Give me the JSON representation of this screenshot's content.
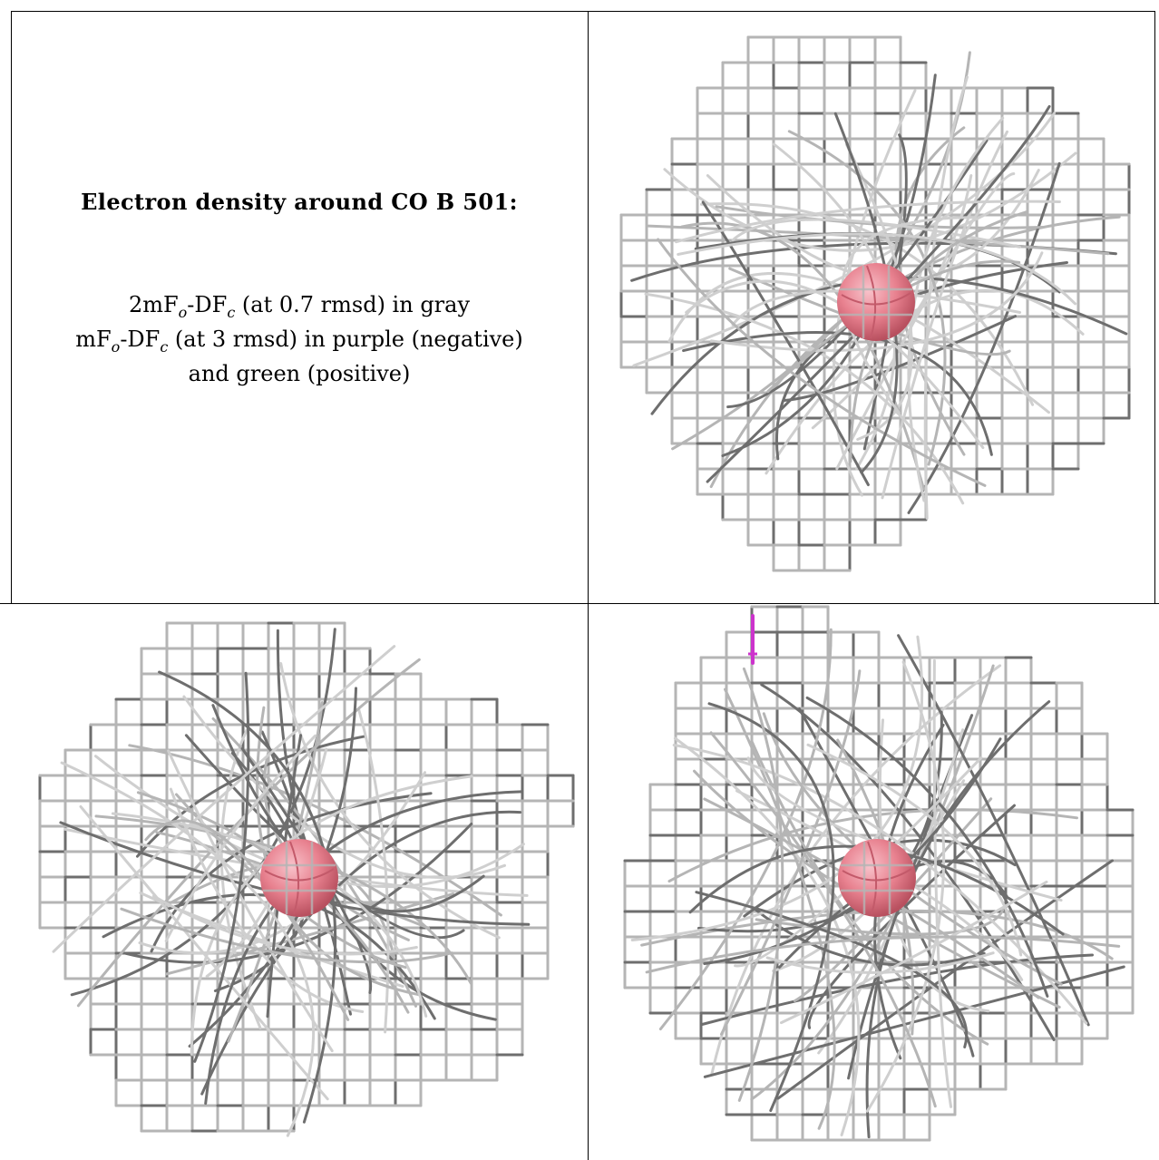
{
  "caption": {
    "title": "Electron density around CO B 501:",
    "line1": {
      "pre": "2mF",
      "sub1": "o",
      "mid": "-DF",
      "sub2": "c",
      "post": " (at 0.7 rmsd) in gray"
    },
    "line2": {
      "pre": "mF",
      "sub1": "o",
      "mid": "-DF",
      "sub2": "c",
      "post": " (at 3 rmsd) in purple (negative)"
    },
    "line3": "and green (positive)"
  },
  "colors": {
    "mesh_gray": "#b5b5b5",
    "mesh_dark": "#6e6e6e",
    "atom": "#e8818f",
    "negative": "#cc33cc",
    "positive": "#2e9e2e"
  },
  "panels": [
    {
      "name": "view-1",
      "atom": "CO",
      "mesh": "2mFo-DFc"
    },
    {
      "name": "view-2",
      "atom": "CO",
      "mesh": "2mFo-DFc"
    },
    {
      "name": "view-3",
      "atom": "CO",
      "mesh": "2mFo-DFc",
      "difference_peak": "negative"
    }
  ]
}
